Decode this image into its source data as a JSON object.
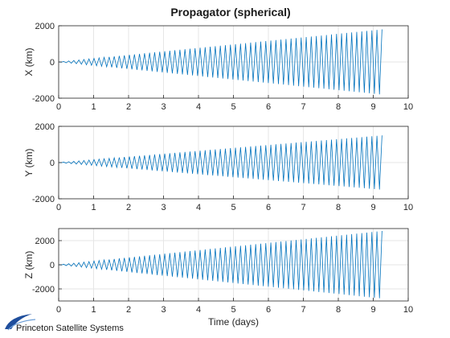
{
  "title": "Propagator (spherical)",
  "footer": {
    "logo_text": "Princeton Satellite Systems"
  },
  "colors": {
    "series": "#0072bd",
    "grid": "#e6e6e6",
    "axis": "#262626",
    "logo_blue": "#1f4e9c"
  },
  "chart_data": [
    {
      "type": "line",
      "title": "Propagator (spherical)",
      "xlabel": "",
      "ylabel": "X (km)",
      "xlim": [
        0,
        10
      ],
      "ylim": [
        -2000,
        2000
      ],
      "xticks": [
        0,
        1,
        2,
        3,
        4,
        5,
        6,
        7,
        8,
        9,
        10
      ],
      "yticks": [
        -2000,
        0,
        2000
      ],
      "grid": true,
      "series": [
        {
          "oscillation_cycles": 64,
          "x_end": 9.25,
          "envelope_days": [
            0,
            9.25
          ],
          "envelope_km": [
            0,
            1800
          ]
        }
      ]
    },
    {
      "type": "line",
      "xlabel": "",
      "ylabel": "Y (km)",
      "xlim": [
        0,
        10
      ],
      "ylim": [
        -2000,
        2000
      ],
      "xticks": [
        0,
        1,
        2,
        3,
        4,
        5,
        6,
        7,
        8,
        9,
        10
      ],
      "yticks": [
        -2000,
        0,
        2000
      ],
      "grid": true,
      "series": [
        {
          "oscillation_cycles": 64,
          "x_end": 9.25,
          "envelope_days": [
            0,
            9.25
          ],
          "envelope_km": [
            0,
            1500
          ]
        }
      ]
    },
    {
      "type": "line",
      "xlabel": "Time (days)",
      "ylabel": "Z (km)",
      "xlim": [
        0,
        10
      ],
      "ylim": [
        -3000,
        3000
      ],
      "xticks": [
        0,
        1,
        2,
        3,
        4,
        5,
        6,
        7,
        8,
        9,
        10
      ],
      "yticks": [
        -2000,
        0,
        2000
      ],
      "grid": true,
      "series": [
        {
          "oscillation_cycles": 64,
          "x_end": 9.25,
          "envelope_days": [
            0,
            9.25
          ],
          "envelope_km": [
            0,
            2800
          ]
        }
      ]
    }
  ]
}
